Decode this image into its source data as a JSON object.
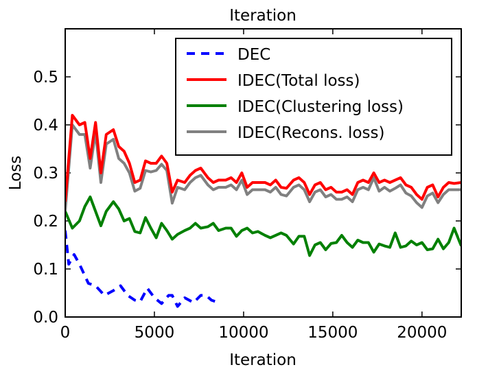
{
  "chart_data": {
    "type": "line",
    "title": "Iteration",
    "xlabel": "Iteration",
    "ylabel": "Loss",
    "xlim": [
      0,
      22200
    ],
    "ylim": [
      0,
      0.6
    ],
    "xticks": [
      0,
      5000,
      10000,
      15000,
      20000
    ],
    "xtick_labels": [
      "0",
      "5000",
      "10000",
      "15000",
      "20000"
    ],
    "yticks": [
      0.0,
      0.1,
      0.2,
      0.3,
      0.4,
      0.5
    ],
    "ytick_labels": [
      "0.0",
      "0.1",
      "0.2",
      "0.3",
      "0.4",
      "0.5"
    ],
    "grid": false,
    "legend_placement": "top-right",
    "x": [
      0,
      400,
      800,
      1100,
      1400,
      1700,
      2000,
      2300,
      2700,
      3000,
      3300,
      3600,
      3900,
      4200,
      4500,
      4800,
      5100,
      5400,
      5700,
      6000,
      6300,
      6700,
      7000,
      7300,
      7600,
      8000,
      8300,
      8600,
      9000,
      9300,
      9600,
      9900,
      10200,
      10500,
      10800,
      11200,
      11500,
      11800,
      12100,
      12400,
      12800,
      13100,
      13400,
      13700,
      14000,
      14300,
      14600,
      14900,
      15200,
      15500,
      15800,
      16100,
      16400,
      16700,
      17000,
      17300,
      17600,
      17900,
      18200,
      18500,
      18800,
      19100,
      19400,
      19700,
      20000,
      20300,
      20600,
      20900,
      21200,
      21500,
      21800,
      22200
    ],
    "series": [
      {
        "name": "DEC",
        "color": "#0000ff",
        "dash": true,
        "x": [
          0,
          200,
          500,
          800,
          1300,
          1700,
          2200,
          2700,
          3100,
          3500,
          3900,
          4200,
          4600,
          5000,
          5400,
          5800,
          6000,
          6300,
          6700,
          7200,
          7600,
          7900,
          8200,
          8600
        ],
        "values": [
          0.18,
          0.11,
          0.13,
          0.11,
          0.07,
          0.065,
          0.045,
          0.055,
          0.065,
          0.045,
          0.035,
          0.032,
          0.06,
          0.04,
          0.028,
          0.045,
          0.045,
          0.022,
          0.04,
          0.03,
          0.045,
          0.045,
          0.035,
          0.03
        ]
      },
      {
        "name": "IDEC(Total loss)",
        "color": "#ff0000",
        "values": [
          0.24,
          0.42,
          0.4,
          0.405,
          0.33,
          0.405,
          0.3,
          0.38,
          0.39,
          0.355,
          0.345,
          0.32,
          0.28,
          0.285,
          0.325,
          0.32,
          0.32,
          0.335,
          0.32,
          0.26,
          0.285,
          0.28,
          0.295,
          0.305,
          0.31,
          0.29,
          0.28,
          0.285,
          0.285,
          0.29,
          0.28,
          0.3,
          0.27,
          0.28,
          0.28,
          0.28,
          0.275,
          0.285,
          0.27,
          0.268,
          0.285,
          0.29,
          0.28,
          0.255,
          0.275,
          0.28,
          0.265,
          0.27,
          0.26,
          0.26,
          0.265,
          0.255,
          0.28,
          0.285,
          0.28,
          0.3,
          0.28,
          0.285,
          0.28,
          0.285,
          0.29,
          0.275,
          0.27,
          0.255,
          0.245,
          0.27,
          0.275,
          0.25,
          0.27,
          0.28,
          0.278,
          0.28
        ]
      },
      {
        "name": "IDEC(Clustering loss)",
        "color": "#008000",
        "values": [
          0.22,
          0.185,
          0.2,
          0.23,
          0.25,
          0.22,
          0.19,
          0.22,
          0.24,
          0.225,
          0.2,
          0.205,
          0.178,
          0.175,
          0.207,
          0.185,
          0.165,
          0.195,
          0.18,
          0.162,
          0.172,
          0.18,
          0.185,
          0.195,
          0.185,
          0.188,
          0.195,
          0.18,
          0.185,
          0.185,
          0.168,
          0.18,
          0.185,
          0.175,
          0.178,
          0.17,
          0.165,
          0.17,
          0.175,
          0.17,
          0.152,
          0.168,
          0.168,
          0.128,
          0.15,
          0.155,
          0.14,
          0.153,
          0.155,
          0.17,
          0.155,
          0.145,
          0.16,
          0.155,
          0.155,
          0.135,
          0.152,
          0.148,
          0.145,
          0.175,
          0.145,
          0.148,
          0.158,
          0.15,
          0.155,
          0.14,
          0.142,
          0.162,
          0.142,
          0.155,
          0.185,
          0.148
        ]
      },
      {
        "name": "IDEC(Recons. loss)",
        "color": "#808080",
        "values": [
          0.22,
          0.4,
          0.38,
          0.38,
          0.31,
          0.385,
          0.28,
          0.36,
          0.37,
          0.33,
          0.32,
          0.3,
          0.262,
          0.268,
          0.305,
          0.302,
          0.305,
          0.318,
          0.305,
          0.237,
          0.27,
          0.265,
          0.28,
          0.29,
          0.295,
          0.275,
          0.265,
          0.27,
          0.27,
          0.275,
          0.265,
          0.285,
          0.255,
          0.265,
          0.265,
          0.265,
          0.26,
          0.27,
          0.255,
          0.252,
          0.27,
          0.275,
          0.265,
          0.24,
          0.26,
          0.265,
          0.25,
          0.255,
          0.245,
          0.245,
          0.25,
          0.24,
          0.265,
          0.27,
          0.265,
          0.29,
          0.262,
          0.27,
          0.262,
          0.268,
          0.275,
          0.258,
          0.252,
          0.238,
          0.228,
          0.252,
          0.258,
          0.238,
          0.255,
          0.265,
          0.265,
          0.265
        ]
      }
    ]
  }
}
